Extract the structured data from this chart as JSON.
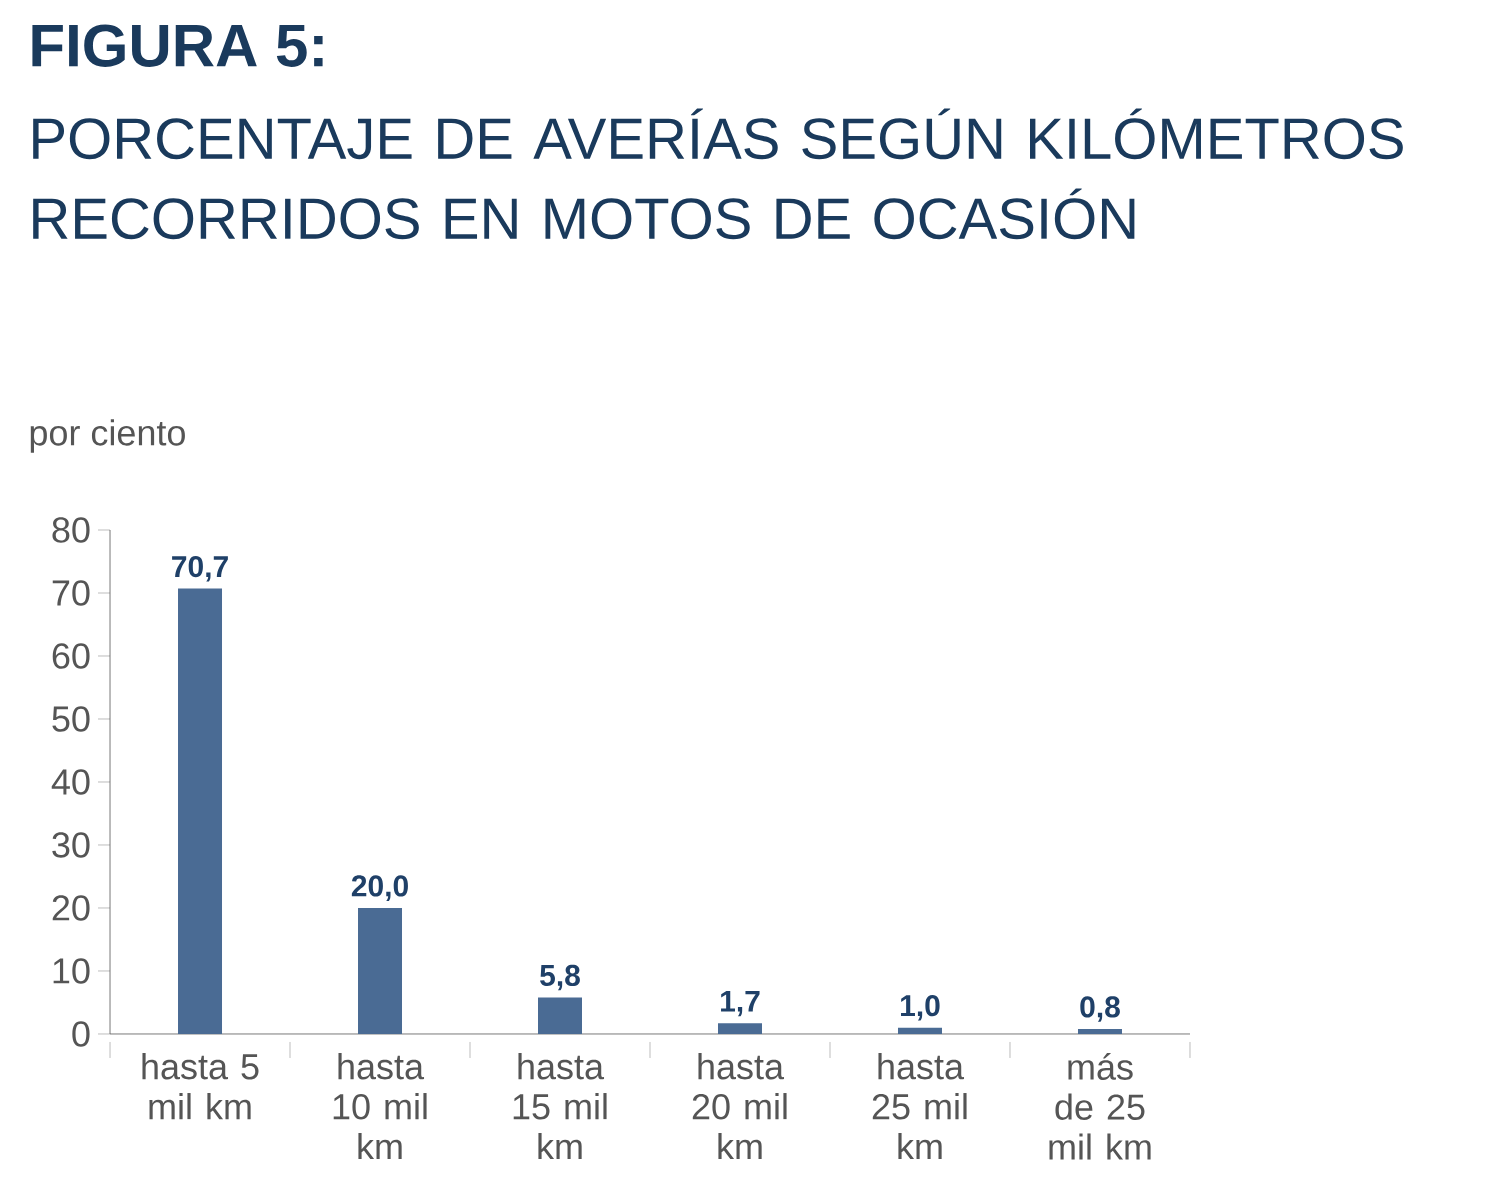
{
  "chart_data": {
    "type": "bar",
    "title": "FIGURA 5:",
    "subtitle": "PORCENTAJE DE AVERÍAS SEGÚN KILÓMETROS RECORRIDOS EN MOTOS DE OCASIÓN",
    "ylabel": "por ciento",
    "categories": [
      "hasta 5 mil km",
      "hasta 10 mil km",
      "hasta 15 mil km",
      "hasta 20 mil km",
      "hasta 25 mil km",
      "más de 25 mil km"
    ],
    "values": [
      70.7,
      20.0,
      5.8,
      1.7,
      1.0,
      0.8
    ],
    "value_labels": [
      "70,7",
      "20,0",
      "5,8",
      "1,7",
      "1,0",
      "0,8"
    ],
    "color": "#4a6b94",
    "ylim": [
      0,
      80
    ],
    "yticks": [
      0,
      10,
      20,
      30,
      40,
      50,
      60,
      70,
      80
    ],
    "grid": false
  }
}
